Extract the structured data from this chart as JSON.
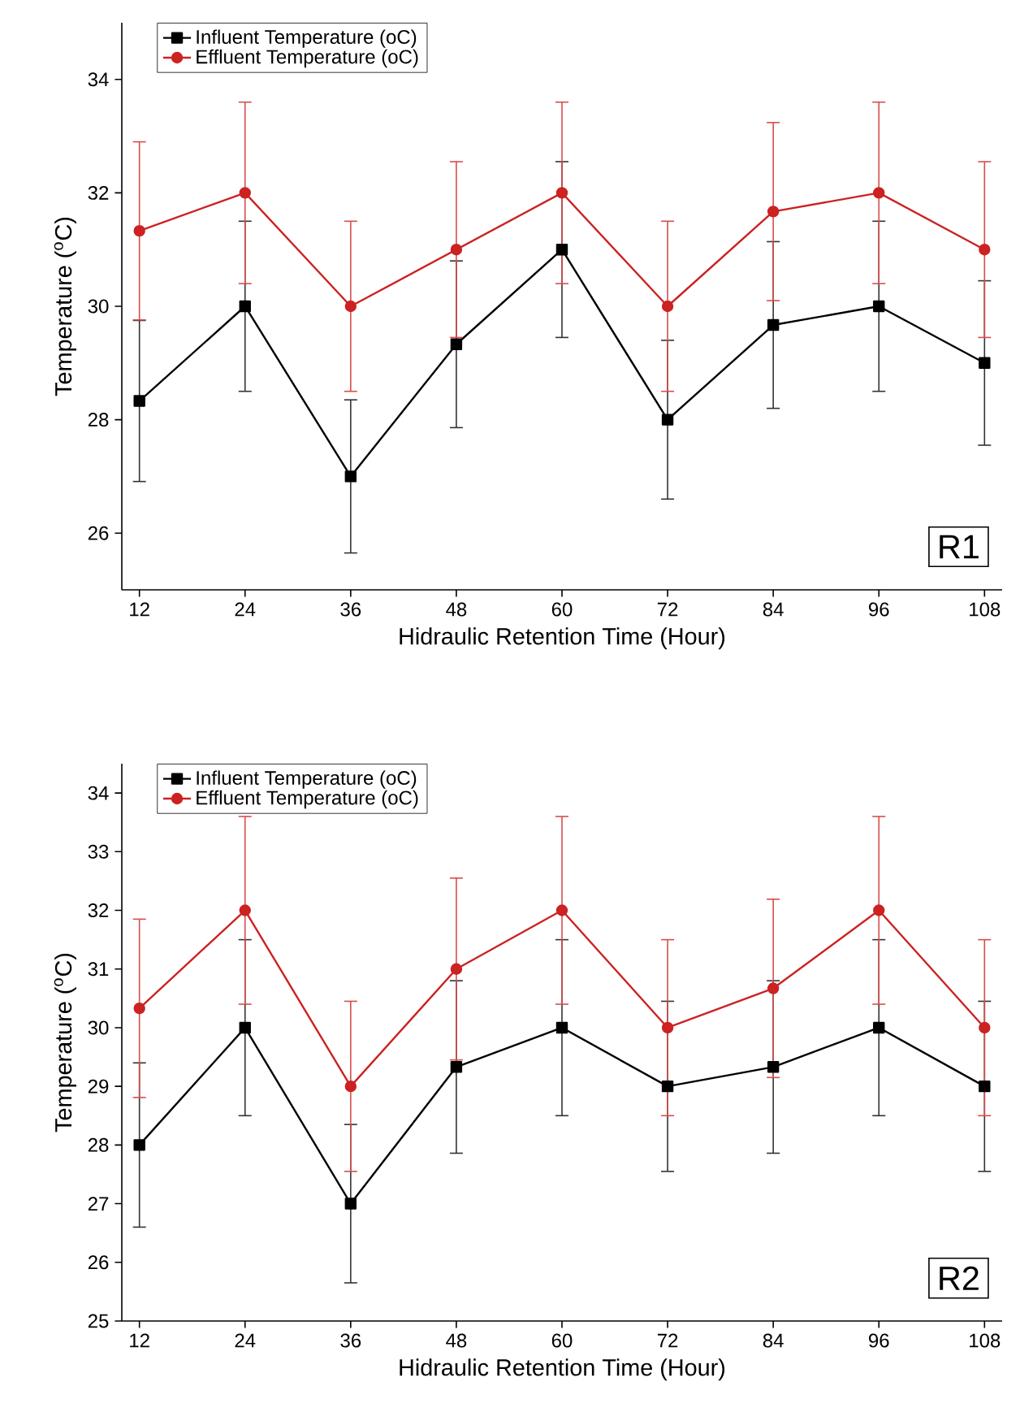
{
  "chart_data": [
    {
      "type": "line",
      "xlabel": "Hidraulic Retention Time (Hour)",
      "ylabel": "Temperature ($^{o}$C)",
      "x": [
        12,
        24,
        36,
        48,
        60,
        72,
        84,
        96,
        108
      ],
      "xlim": [
        10,
        110
      ],
      "xticks": [
        12,
        24,
        36,
        48,
        60,
        72,
        84,
        96,
        108
      ],
      "ylim": [
        25,
        35
      ],
      "yticks": [
        26,
        28,
        30,
        32,
        34
      ],
      "legend": "top left",
      "annotations": [
        "R1"
      ],
      "series": [
        {
          "name": "Influent Temperature (oC)",
          "color": "#000000",
          "marker": "square",
          "values": [
            28.33,
            30,
            27,
            29.33,
            31,
            28,
            29.67,
            30,
            29
          ],
          "errors": [
            1.42,
            1.5,
            1.35,
            1.47,
            1.55,
            1.4,
            1.47,
            1.5,
            1.45
          ]
        },
        {
          "name": "Effluent Temperature (oC)",
          "color": "#cc2222",
          "marker": "circle",
          "values": [
            31.33,
            32,
            30,
            31,
            32,
            30,
            31.67,
            32,
            31
          ],
          "errors": [
            1.57,
            1.6,
            1.5,
            1.55,
            1.6,
            1.5,
            1.57,
            1.6,
            1.55
          ]
        }
      ]
    },
    {
      "type": "line",
      "xlabel": "Hidraulic Retention Time (Hour)",
      "ylabel": "Temperature ($^{o}$C)",
      "x": [
        12,
        24,
        36,
        48,
        60,
        72,
        84,
        96,
        108
      ],
      "xlim": [
        10,
        110
      ],
      "xticks": [
        12,
        24,
        36,
        48,
        60,
        72,
        84,
        96,
        108
      ],
      "ylim": [
        25,
        34.5
      ],
      "yticks": [
        25,
        26,
        27,
        28,
        29,
        30,
        31,
        32,
        33,
        34
      ],
      "legend": "top left",
      "annotations": [
        "R2"
      ],
      "series": [
        {
          "name": "Influent Temperature (oC)",
          "color": "#000000",
          "marker": "square",
          "values": [
            28,
            30,
            27,
            29.33,
            30,
            29,
            29.33,
            30,
            29
          ],
          "errors": [
            1.4,
            1.5,
            1.35,
            1.47,
            1.5,
            1.45,
            1.47,
            1.5,
            1.45
          ]
        },
        {
          "name": "Effluent Temperature (oC)",
          "color": "#cc2222",
          "marker": "circle",
          "values": [
            30.33,
            32,
            29,
            31,
            32,
            30,
            30.67,
            32,
            30
          ],
          "errors": [
            1.52,
            1.6,
            1.45,
            1.55,
            1.6,
            1.5,
            1.52,
            1.6,
            1.5
          ]
        }
      ]
    }
  ]
}
